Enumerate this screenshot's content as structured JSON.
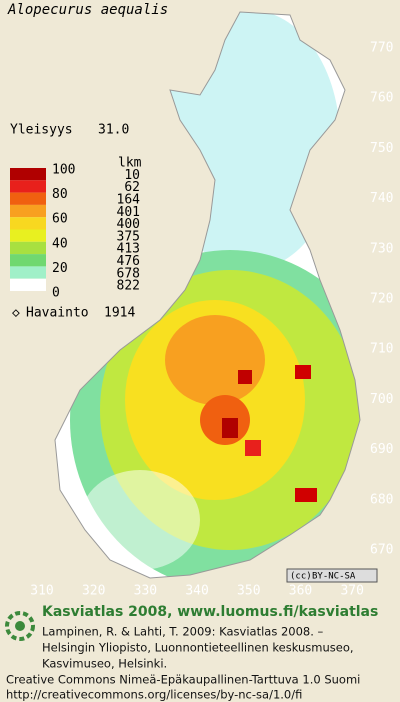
{
  "title": "Alopecurus aequalis",
  "frequency": {
    "label": "Yleisyys",
    "value": "31.0"
  },
  "legend": {
    "scale_labels": [
      "100",
      "80",
      "60",
      "40",
      "20",
      "0"
    ],
    "count_header": "lkm",
    "classes": [
      {
        "color": "#b00000",
        "count": "10"
      },
      {
        "color": "#e8201c",
        "count": "62"
      },
      {
        "color": "#f06010",
        "count": "164"
      },
      {
        "color": "#f8a020",
        "count": "401"
      },
      {
        "color": "#f8d820",
        "count": "400"
      },
      {
        "color": "#e8f020",
        "count": "375"
      },
      {
        "color": "#a8e040",
        "count": "413"
      },
      {
        "color": "#70d870",
        "count": "476"
      },
      {
        "color": "#a0f0c8",
        "count": "678"
      },
      {
        "color": "#ffffff",
        "count": "822"
      }
    ]
  },
  "observations": {
    "label": "Havainto",
    "value": "1914"
  },
  "map": {
    "y_labels": [
      "770",
      "760",
      "750",
      "740",
      "730",
      "720",
      "710",
      "700",
      "690",
      "680",
      "670"
    ],
    "x_labels": [
      "310",
      "320",
      "330",
      "340",
      "350",
      "360",
      "370"
    ]
  },
  "license_badge": "BY-NC-SA",
  "footer": {
    "heading": "Kasviatlas 2008, www.luomus.fi/kasviatlas",
    "citation": [
      "Lampinen, R. & Lahti, T. 2009: Kasviatlas 2008. –",
      "Helsingin Yliopisto, Luonnontieteellinen keskusmuseo,",
      "Kasvimuseo, Helsinki."
    ],
    "license": [
      "Creative Commons Nimeä-Epäkaupallinen-Tarttuva 1.0 Suomi",
      "http://creativecommons.org/licenses/by-nc-sa/1.0/fi"
    ]
  }
}
